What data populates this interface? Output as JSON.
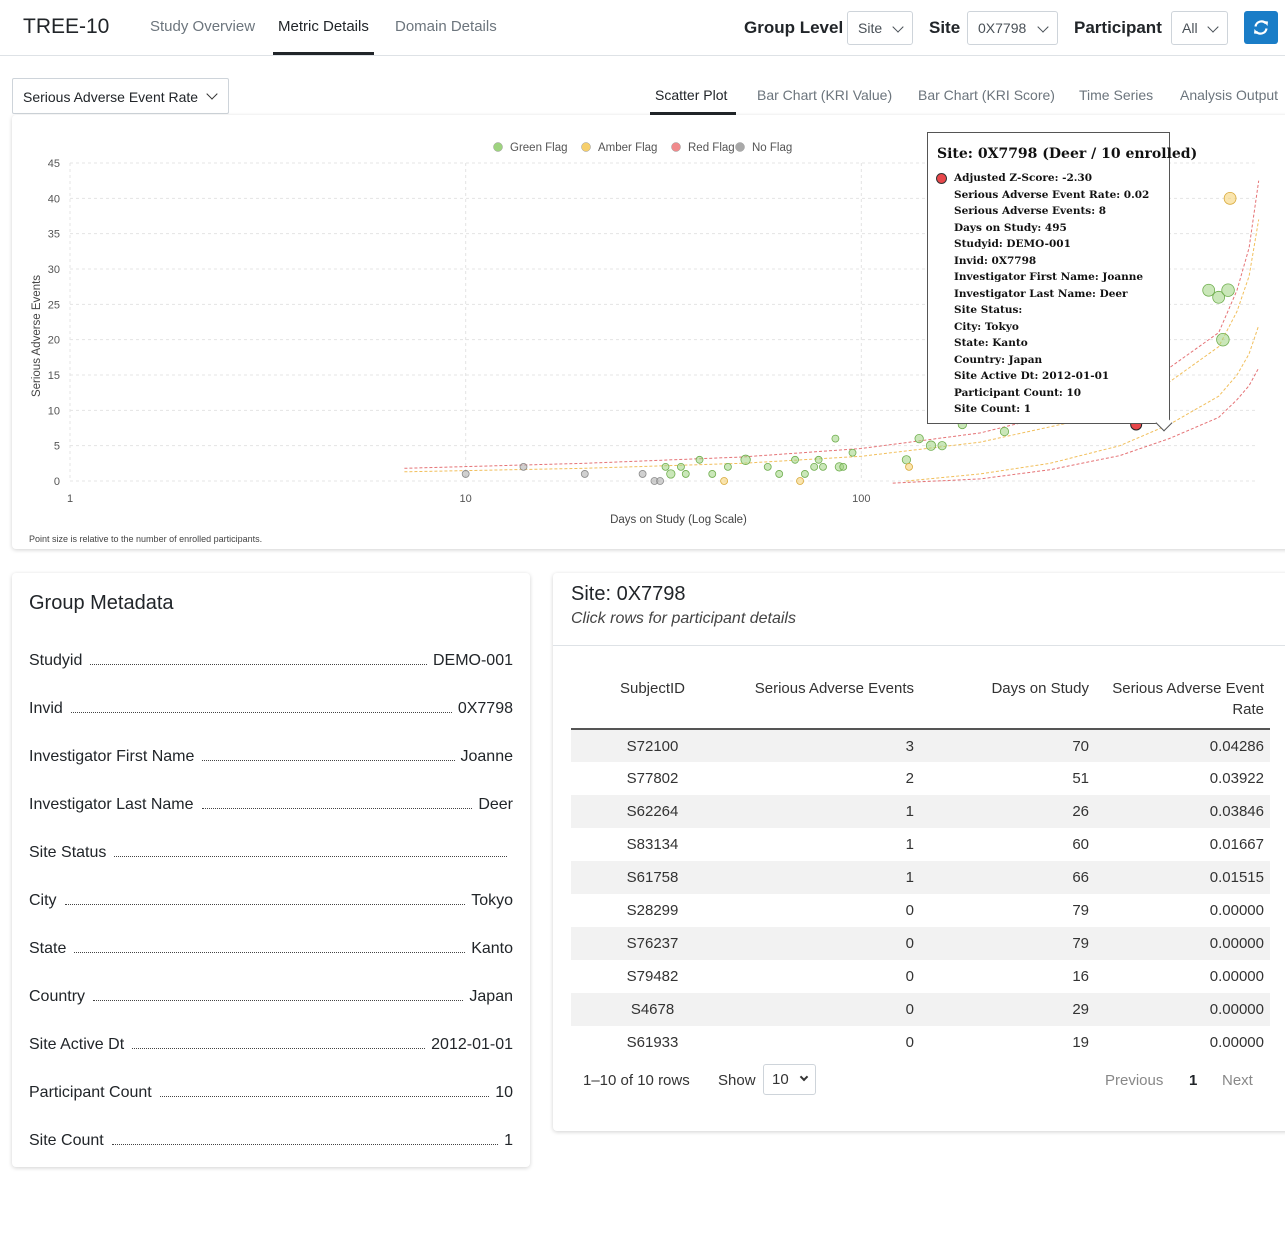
{
  "app": {
    "title": "TREE-10"
  },
  "nav": {
    "tabs": [
      "Study Overview",
      "Metric Details",
      "Domain Details"
    ],
    "active": "Metric Details"
  },
  "selectors": {
    "group_level_label": "Group Level",
    "group_level_value": "Site",
    "site_label": "Site",
    "site_value": "0X7798",
    "participant_label": "Participant",
    "participant_value": "All"
  },
  "metric_select": {
    "value": "Serious Adverse Event Rate"
  },
  "chart_tabs": [
    "Scatter Plot",
    "Bar Chart (KRI Value)",
    "Bar Chart (KRI Score)",
    "Time Series",
    "Analysis Output"
  ],
  "chart_tabs_active": "Scatter Plot",
  "colors": {
    "green": "#9ed37f",
    "amber": "#f6cf6c",
    "red": "#f08a8c",
    "gray": "#a9a9a9",
    "highlight": "#e8474b",
    "accent": "#1a7dc7"
  },
  "chart_note": "Point size is relative to the number of enrolled participants.",
  "chart_data": {
    "type": "scatter",
    "xlabel": "Days on Study (Log Scale)",
    "ylabel": "Serious Adverse Events",
    "x_scale": "log",
    "xlim": [
      1,
      1000
    ],
    "x_ticks": [
      1,
      10,
      100
    ],
    "ylim": [
      0,
      45
    ],
    "y_ticks": [
      0,
      5,
      10,
      15,
      20,
      25,
      30,
      35,
      40,
      45
    ],
    "grid": true,
    "legend": {
      "position": "top",
      "entries": [
        {
          "label": "Green Flag",
          "color": "#9ed37f"
        },
        {
          "label": "Amber Flag",
          "color": "#f6cf6c"
        },
        {
          "label": "Red Flag",
          "color": "#f08a8c"
        },
        {
          "label": "No Flag",
          "color": "#a9a9a9"
        }
      ]
    },
    "points": [
      {
        "x": 10,
        "y": 1,
        "flag": "gray",
        "n": 1
      },
      {
        "x": 14,
        "y": 2,
        "flag": "gray",
        "n": 1
      },
      {
        "x": 20,
        "y": 1,
        "flag": "gray",
        "n": 1
      },
      {
        "x": 28,
        "y": 1,
        "flag": "gray",
        "n": 1
      },
      {
        "x": 30,
        "y": 0,
        "flag": "gray",
        "n": 1
      },
      {
        "x": 31,
        "y": 0,
        "flag": "gray",
        "n": 1
      },
      {
        "x": 32,
        "y": 2,
        "flag": "green",
        "n": 1
      },
      {
        "x": 33,
        "y": 1,
        "flag": "green",
        "n": 2
      },
      {
        "x": 35,
        "y": 2,
        "flag": "green",
        "n": 1
      },
      {
        "x": 36,
        "y": 1,
        "flag": "green",
        "n": 1
      },
      {
        "x": 39,
        "y": 3,
        "flag": "green",
        "n": 1
      },
      {
        "x": 42,
        "y": 1,
        "flag": "green",
        "n": 1
      },
      {
        "x": 45,
        "y": 0,
        "flag": "amber",
        "n": 1
      },
      {
        "x": 46,
        "y": 2,
        "flag": "green",
        "n": 1
      },
      {
        "x": 51,
        "y": 3,
        "flag": "green",
        "n": 3
      },
      {
        "x": 58,
        "y": 2,
        "flag": "green",
        "n": 1
      },
      {
        "x": 62,
        "y": 1,
        "flag": "green",
        "n": 1
      },
      {
        "x": 68,
        "y": 3,
        "flag": "green",
        "n": 1
      },
      {
        "x": 70,
        "y": 0,
        "flag": "amber",
        "n": 1
      },
      {
        "x": 72,
        "y": 1,
        "flag": "green",
        "n": 1
      },
      {
        "x": 76,
        "y": 2,
        "flag": "green",
        "n": 1
      },
      {
        "x": 78,
        "y": 3,
        "flag": "green",
        "n": 1
      },
      {
        "x": 80,
        "y": 2,
        "flag": "green",
        "n": 1
      },
      {
        "x": 86,
        "y": 6,
        "flag": "green",
        "n": 1
      },
      {
        "x": 88,
        "y": 2,
        "flag": "green",
        "n": 2
      },
      {
        "x": 90,
        "y": 2,
        "flag": "green",
        "n": 1
      },
      {
        "x": 95,
        "y": 4,
        "flag": "green",
        "n": 1
      },
      {
        "x": 130,
        "y": 3,
        "flag": "green",
        "n": 2
      },
      {
        "x": 132,
        "y": 2,
        "flag": "amber",
        "n": 1
      },
      {
        "x": 140,
        "y": 6,
        "flag": "green",
        "n": 2
      },
      {
        "x": 150,
        "y": 5,
        "flag": "green",
        "n": 3
      },
      {
        "x": 160,
        "y": 5,
        "flag": "green",
        "n": 2
      },
      {
        "x": 180,
        "y": 8,
        "flag": "green",
        "n": 2
      },
      {
        "x": 230,
        "y": 7,
        "flag": "green",
        "n": 2
      },
      {
        "x": 335,
        "y": 10,
        "flag": "green",
        "n": 3
      },
      {
        "x": 395,
        "y": 10,
        "flag": "green",
        "n": 3
      },
      {
        "x": 470,
        "y": 18,
        "flag": "green",
        "n": 2
      },
      {
        "x": 495,
        "y": 8,
        "flag": "red",
        "n": 10,
        "highlight": true
      },
      {
        "x": 755,
        "y": 27,
        "flag": "green",
        "n": 6
      },
      {
        "x": 800,
        "y": 26,
        "flag": "green",
        "n": 6
      },
      {
        "x": 820,
        "y": 20,
        "flag": "green",
        "n": 7
      },
      {
        "x": 845,
        "y": 27,
        "flag": "green",
        "n": 7
      },
      {
        "x": 855,
        "y": 40,
        "flag": "amber",
        "n": 6
      }
    ],
    "boundaries": [
      {
        "color": "#e05a5e",
        "points": [
          [
            7,
            1.8
          ],
          [
            20,
            2.5
          ],
          [
            50,
            3.4
          ],
          [
            100,
            4.6
          ],
          [
            200,
            6.8
          ],
          [
            400,
            11
          ],
          [
            600,
            16
          ],
          [
            800,
            21
          ],
          [
            890,
            27
          ],
          [
            955,
            33
          ],
          [
            1010,
            42.5
          ]
        ]
      },
      {
        "color": "#efb43f",
        "points": [
          [
            7,
            1.3
          ],
          [
            20,
            1.8
          ],
          [
            50,
            2.5
          ],
          [
            100,
            3.5
          ],
          [
            200,
            5.5
          ],
          [
            400,
            9.2
          ],
          [
            600,
            14
          ],
          [
            800,
            19
          ],
          [
            890,
            24
          ],
          [
            955,
            29
          ],
          [
            1010,
            37
          ]
        ]
      },
      {
        "color": "#efb43f",
        "points": [
          [
            130,
            0
          ],
          [
            200,
            1
          ],
          [
            300,
            2.5
          ],
          [
            450,
            5
          ],
          [
            600,
            8
          ],
          [
            800,
            12
          ],
          [
            890,
            15
          ],
          [
            955,
            18
          ],
          [
            1010,
            22
          ]
        ]
      },
      {
        "color": "#e05a5e",
        "points": [
          [
            120,
            -0.3
          ],
          [
            200,
            0.3
          ],
          [
            300,
            1.6
          ],
          [
            450,
            3.6
          ],
          [
            600,
            6
          ],
          [
            800,
            9
          ],
          [
            890,
            11.5
          ],
          [
            955,
            13.5
          ],
          [
            1010,
            16
          ]
        ]
      }
    ]
  },
  "tooltip": {
    "title": "Site: 0X7798 (Deer / 10 enrolled)",
    "lines": [
      "Adjusted Z-Score: -2.30",
      "Serious Adverse Event Rate: 0.02",
      "Serious Adverse Events: 8",
      "Days on Study: 495",
      "Studyid: DEMO-001",
      "Invid: 0X7798",
      "Investigator First Name: Joanne",
      "Investigator Last Name: Deer",
      "Site Status:",
      "City: Tokyo",
      "State: Kanto",
      "Country: Japan",
      "Site Active Dt: 2012-01-01",
      "Participant Count: 10",
      "Site Count: 1"
    ]
  },
  "metadata": {
    "title": "Group Metadata",
    "rows": [
      {
        "key": "Studyid",
        "value": "DEMO-001"
      },
      {
        "key": "Invid",
        "value": "0X7798"
      },
      {
        "key": "Investigator First Name",
        "value": "Joanne"
      },
      {
        "key": "Investigator Last Name",
        "value": "Deer"
      },
      {
        "key": "Site Status",
        "value": ""
      },
      {
        "key": "City",
        "value": "Tokyo"
      },
      {
        "key": "State",
        "value": "Kanto"
      },
      {
        "key": "Country",
        "value": "Japan"
      },
      {
        "key": "Site Active Dt",
        "value": "2012-01-01"
      },
      {
        "key": "Participant Count",
        "value": "10"
      },
      {
        "key": "Site Count",
        "value": "1"
      }
    ]
  },
  "site_panel": {
    "title": "Site: 0X7798",
    "subtitle": "Click rows for participant details",
    "columns": [
      "SubjectID",
      "Serious Adverse Events",
      "Days on Study",
      "Serious Adverse Event Rate"
    ],
    "rows": [
      [
        "S72100",
        "3",
        "70",
        "0.04286"
      ],
      [
        "S77802",
        "2",
        "51",
        "0.03922"
      ],
      [
        "S62264",
        "1",
        "26",
        "0.03846"
      ],
      [
        "S83134",
        "1",
        "60",
        "0.01667"
      ],
      [
        "S61758",
        "1",
        "66",
        "0.01515"
      ],
      [
        "S28299",
        "0",
        "79",
        "0.00000"
      ],
      [
        "S76237",
        "0",
        "79",
        "0.00000"
      ],
      [
        "S79482",
        "0",
        "16",
        "0.00000"
      ],
      [
        "S4678",
        "0",
        "29",
        "0.00000"
      ],
      [
        "S61933",
        "0",
        "19",
        "0.00000"
      ]
    ],
    "pagination": {
      "info": "1–10 of 10 rows",
      "show_label": "Show",
      "page_size": "10",
      "previous": "Previous",
      "current": "1",
      "next": "Next"
    }
  }
}
